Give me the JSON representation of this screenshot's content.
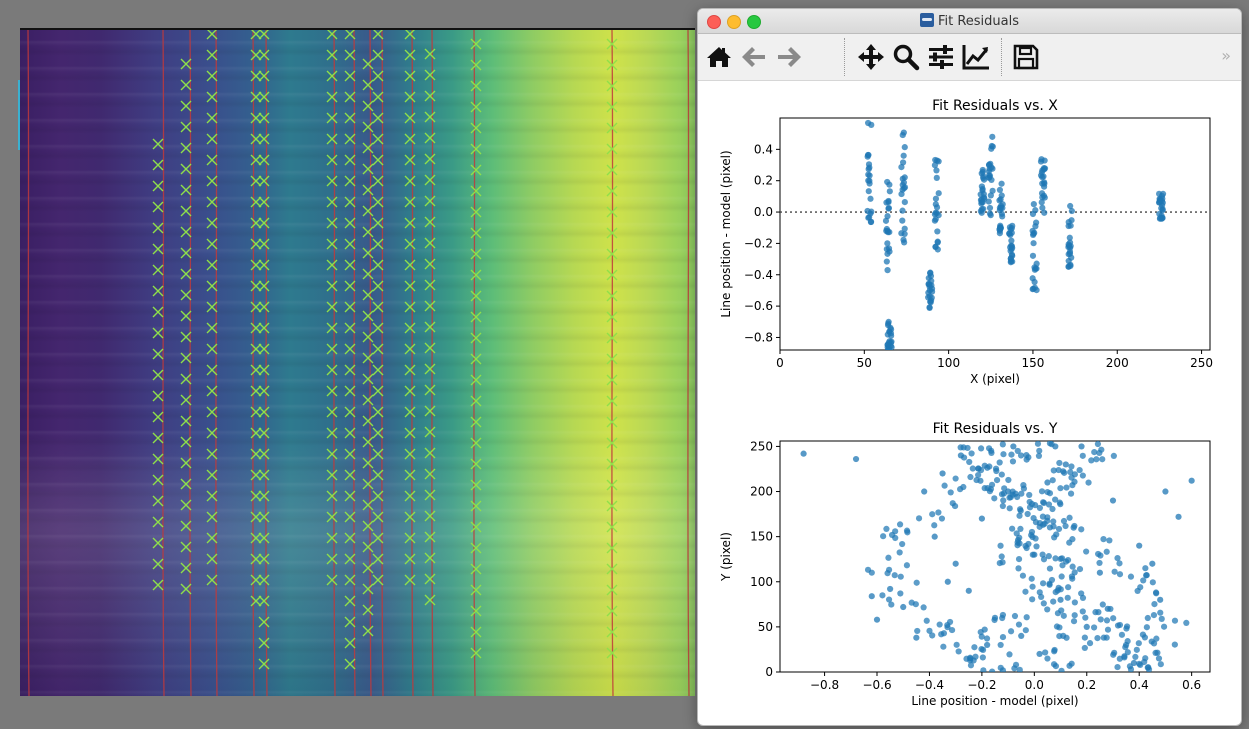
{
  "window": {
    "title": "Fit Residuals",
    "more_glyph": "»"
  },
  "toolbar": {
    "buttons": [
      {
        "name": "home-icon",
        "tooltip": "Home"
      },
      {
        "name": "back-arrow-icon",
        "tooltip": "Back"
      },
      {
        "name": "forward-arrow-icon",
        "tooltip": "Forward"
      },
      {
        "name": "pan-move-icon",
        "tooltip": "Pan"
      },
      {
        "name": "zoom-magnifier-icon",
        "tooltip": "Zoom"
      },
      {
        "name": "subplots-config-icon",
        "tooltip": "Configure subplots"
      },
      {
        "name": "axes-edit-icon",
        "tooltip": "Edit axes"
      },
      {
        "name": "save-floppy-icon",
        "tooltip": "Save"
      }
    ]
  },
  "colors": {
    "points": "#1f77b4",
    "crosses": "#8fe04a",
    "lines": "#c0393b"
  },
  "chart_data": [
    {
      "type": "scatter",
      "title": "Fit Residuals vs. X",
      "xlabel": "X (pixel)",
      "ylabel": "Line position - model (pixel)",
      "xlim": [
        0,
        255
      ],
      "ylim": [
        -0.88,
        0.6
      ],
      "xticks": [
        0,
        50,
        100,
        150,
        200,
        250
      ],
      "yticks": [
        -0.8,
        -0.6,
        -0.4,
        -0.2,
        0.0,
        0.2,
        0.4
      ],
      "ytick_labels": [
        "−0.8",
        "−0.6",
        "−0.4",
        "−0.2",
        "0.0",
        "0.2",
        "0.4"
      ],
      "reference_line_y": 0,
      "clusters": [
        {
          "x": 53,
          "y_range": [
            -0.12,
            0.6
          ]
        },
        {
          "x": 64,
          "y_range": [
            -0.4,
            0.22
          ]
        },
        {
          "x": 65,
          "y_range": [
            -0.88,
            -0.68
          ]
        },
        {
          "x": 73,
          "y_range": [
            -0.2,
            0.58
          ]
        },
        {
          "x": 89,
          "y_range": [
            -0.62,
            -0.38
          ]
        },
        {
          "x": 93,
          "y_range": [
            -0.28,
            0.4
          ]
        },
        {
          "x": 120,
          "y_range": [
            -0.02,
            0.28
          ]
        },
        {
          "x": 125,
          "y_range": [
            -0.02,
            0.5
          ]
        },
        {
          "x": 131,
          "y_range": [
            -0.14,
            0.22
          ]
        },
        {
          "x": 137,
          "y_range": [
            -0.32,
            -0.08
          ]
        },
        {
          "x": 151,
          "y_range": [
            -0.5,
            0.08
          ]
        },
        {
          "x": 156,
          "y_range": [
            -0.02,
            0.34
          ]
        },
        {
          "x": 172,
          "y_range": [
            -0.38,
            0.08
          ]
        },
        {
          "x": 226,
          "y_range": [
            -0.06,
            0.12
          ]
        }
      ]
    },
    {
      "type": "scatter",
      "title": "Fit Residuals vs. Y",
      "xlabel": "Line position - model (pixel)",
      "ylabel": "Y (pixel)",
      "xlim": [
        -0.97,
        0.67
      ],
      "ylim": [
        0,
        256
      ],
      "xticks": [
        -0.8,
        -0.6,
        -0.4,
        -0.2,
        0.0,
        0.2,
        0.4,
        0.6
      ],
      "xtick_labels": [
        "−0.8",
        "−0.6",
        "−0.4",
        "−0.2",
        "0.0",
        "0.2",
        "0.4",
        "0.6"
      ],
      "yticks": [
        0,
        50,
        100,
        150,
        200,
        250
      ],
      "points": [
        [
          -0.88,
          242
        ],
        [
          -0.68,
          236
        ],
        [
          0.6,
          212
        ],
        [
          0.55,
          172
        ],
        [
          0.5,
          200
        ],
        [
          -0.62,
          84
        ],
        [
          -0.6,
          58
        ],
        [
          -0.55,
          92
        ],
        [
          -0.5,
          72
        ],
        [
          -0.45,
          38
        ],
        [
          -0.42,
          200
        ],
        [
          -0.38,
          150
        ],
        [
          -0.3,
          120
        ],
        [
          -0.25,
          90
        ],
        [
          -0.2,
          170
        ],
        [
          -0.15,
          60
        ],
        [
          -0.1,
          200
        ],
        [
          -0.05,
          40
        ],
        [
          0.0,
          130
        ],
        [
          0.05,
          210
        ],
        [
          0.1,
          80
        ],
        [
          0.15,
          160
        ],
        [
          0.2,
          50
        ],
        [
          0.25,
          110
        ],
        [
          0.3,
          190
        ],
        [
          0.35,
          30
        ],
        [
          0.38,
          10
        ],
        [
          0.4,
          140
        ],
        [
          0.45,
          120
        ],
        [
          0.48,
          80
        ],
        [
          -0.35,
          220
        ],
        [
          -0.33,
          100
        ],
        [
          -0.28,
          240
        ],
        [
          0.02,
          20
        ],
        [
          0.08,
          250
        ],
        [
          0.12,
          230
        ],
        [
          -0.08,
          250
        ],
        [
          0.18,
          250
        ],
        [
          -0.18,
          30
        ],
        [
          0.28,
          70
        ]
      ],
      "scatter_seed_count": 380
    }
  ]
}
